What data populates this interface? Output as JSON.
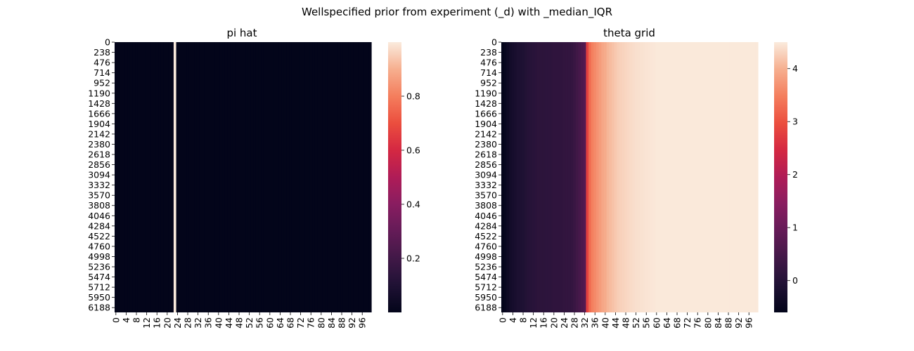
{
  "figure": {
    "suptitle": "Wellspecified prior from experiment (_d) with _median_IQR"
  },
  "chart_data": [
    {
      "type": "heatmap",
      "title": "pi hat",
      "n_rows": 6300,
      "n_cols": 100,
      "y_tick_labels": [
        "0",
        "238",
        "476",
        "714",
        "952",
        "1190",
        "1428",
        "1666",
        "1904",
        "2142",
        "2380",
        "2618",
        "2856",
        "3094",
        "3332",
        "3570",
        "3808",
        "4046",
        "4284",
        "4522",
        "4760",
        "4998",
        "5236",
        "5474",
        "5712",
        "5950",
        "6188"
      ],
      "x_tick_labels": [
        "0",
        "4",
        "8",
        "12",
        "16",
        "20",
        "24",
        "28",
        "32",
        "36",
        "40",
        "44",
        "48",
        "52",
        "56",
        "60",
        "64",
        "68",
        "72",
        "76",
        "80",
        "84",
        "88",
        "92",
        "96"
      ],
      "vmin": 0.0,
      "vmax": 1.0,
      "colorbar_ticks": [
        0.2,
        0.4,
        0.6,
        0.8
      ],
      "colorbar_tick_labels": [
        "0.2",
        "0.4",
        "0.6",
        "0.8"
      ],
      "colormap": "rocket",
      "column_values": {
        "default": 0.0,
        "spikes": [
          {
            "col": 23,
            "value": 1.0
          }
        ]
      }
    },
    {
      "type": "heatmap",
      "title": "theta grid",
      "n_rows": 6300,
      "n_cols": 100,
      "y_tick_labels": [
        "0",
        "238",
        "476",
        "714",
        "952",
        "1190",
        "1428",
        "1666",
        "1904",
        "2142",
        "2380",
        "2618",
        "2856",
        "3094",
        "3332",
        "3570",
        "3808",
        "4046",
        "4284",
        "4522",
        "4760",
        "4998",
        "5236",
        "5474",
        "5712",
        "5950",
        "6188"
      ],
      "x_tick_labels": [
        "0",
        "4",
        "8",
        "12",
        "16",
        "20",
        "24",
        "28",
        "32",
        "36",
        "40",
        "44",
        "48",
        "52",
        "56",
        "60",
        "64",
        "68",
        "72",
        "76",
        "80",
        "84",
        "88",
        "92",
        "96"
      ],
      "vmin": -0.6,
      "vmax": 4.5,
      "colorbar_ticks": [
        0,
        1,
        2,
        3,
        4
      ],
      "colorbar_tick_labels": [
        "0",
        "1",
        "2",
        "3",
        "4"
      ],
      "colormap": "rocket",
      "column_values": [
        -0.6,
        -0.5,
        -0.4,
        -0.3,
        -0.25,
        -0.2,
        -0.15,
        -0.12,
        -0.1,
        -0.05,
        0.0,
        0.02,
        0.05,
        0.08,
        0.1,
        0.1,
        0.1,
        0.12,
        0.12,
        0.12,
        0.15,
        0.15,
        0.15,
        0.15,
        0.18,
        0.2,
        0.2,
        0.22,
        0.3,
        0.4,
        0.5,
        0.6,
        0.7,
        2.8,
        3.3,
        3.5,
        3.6,
        3.7,
        3.8,
        3.9,
        3.95,
        4.05,
        4.1,
        4.15,
        4.2,
        4.25,
        4.28,
        4.3,
        4.32,
        4.34,
        4.36,
        4.38,
        4.4,
        4.41,
        4.42,
        4.43,
        4.44,
        4.45,
        4.46,
        4.47,
        4.48,
        4.48,
        4.48,
        4.48,
        4.48,
        4.48,
        4.48,
        4.48,
        4.48,
        4.48,
        4.48,
        4.48,
        4.48,
        4.48,
        4.48,
        4.48,
        4.48,
        4.48,
        4.48,
        4.48,
        4.48,
        4.48,
        4.48,
        4.48,
        4.48,
        4.48,
        4.48,
        4.48,
        4.48,
        4.48,
        4.48,
        4.48,
        4.48,
        4.48,
        4.48,
        4.48,
        4.48,
        4.48,
        4.48,
        4.48
      ]
    }
  ]
}
